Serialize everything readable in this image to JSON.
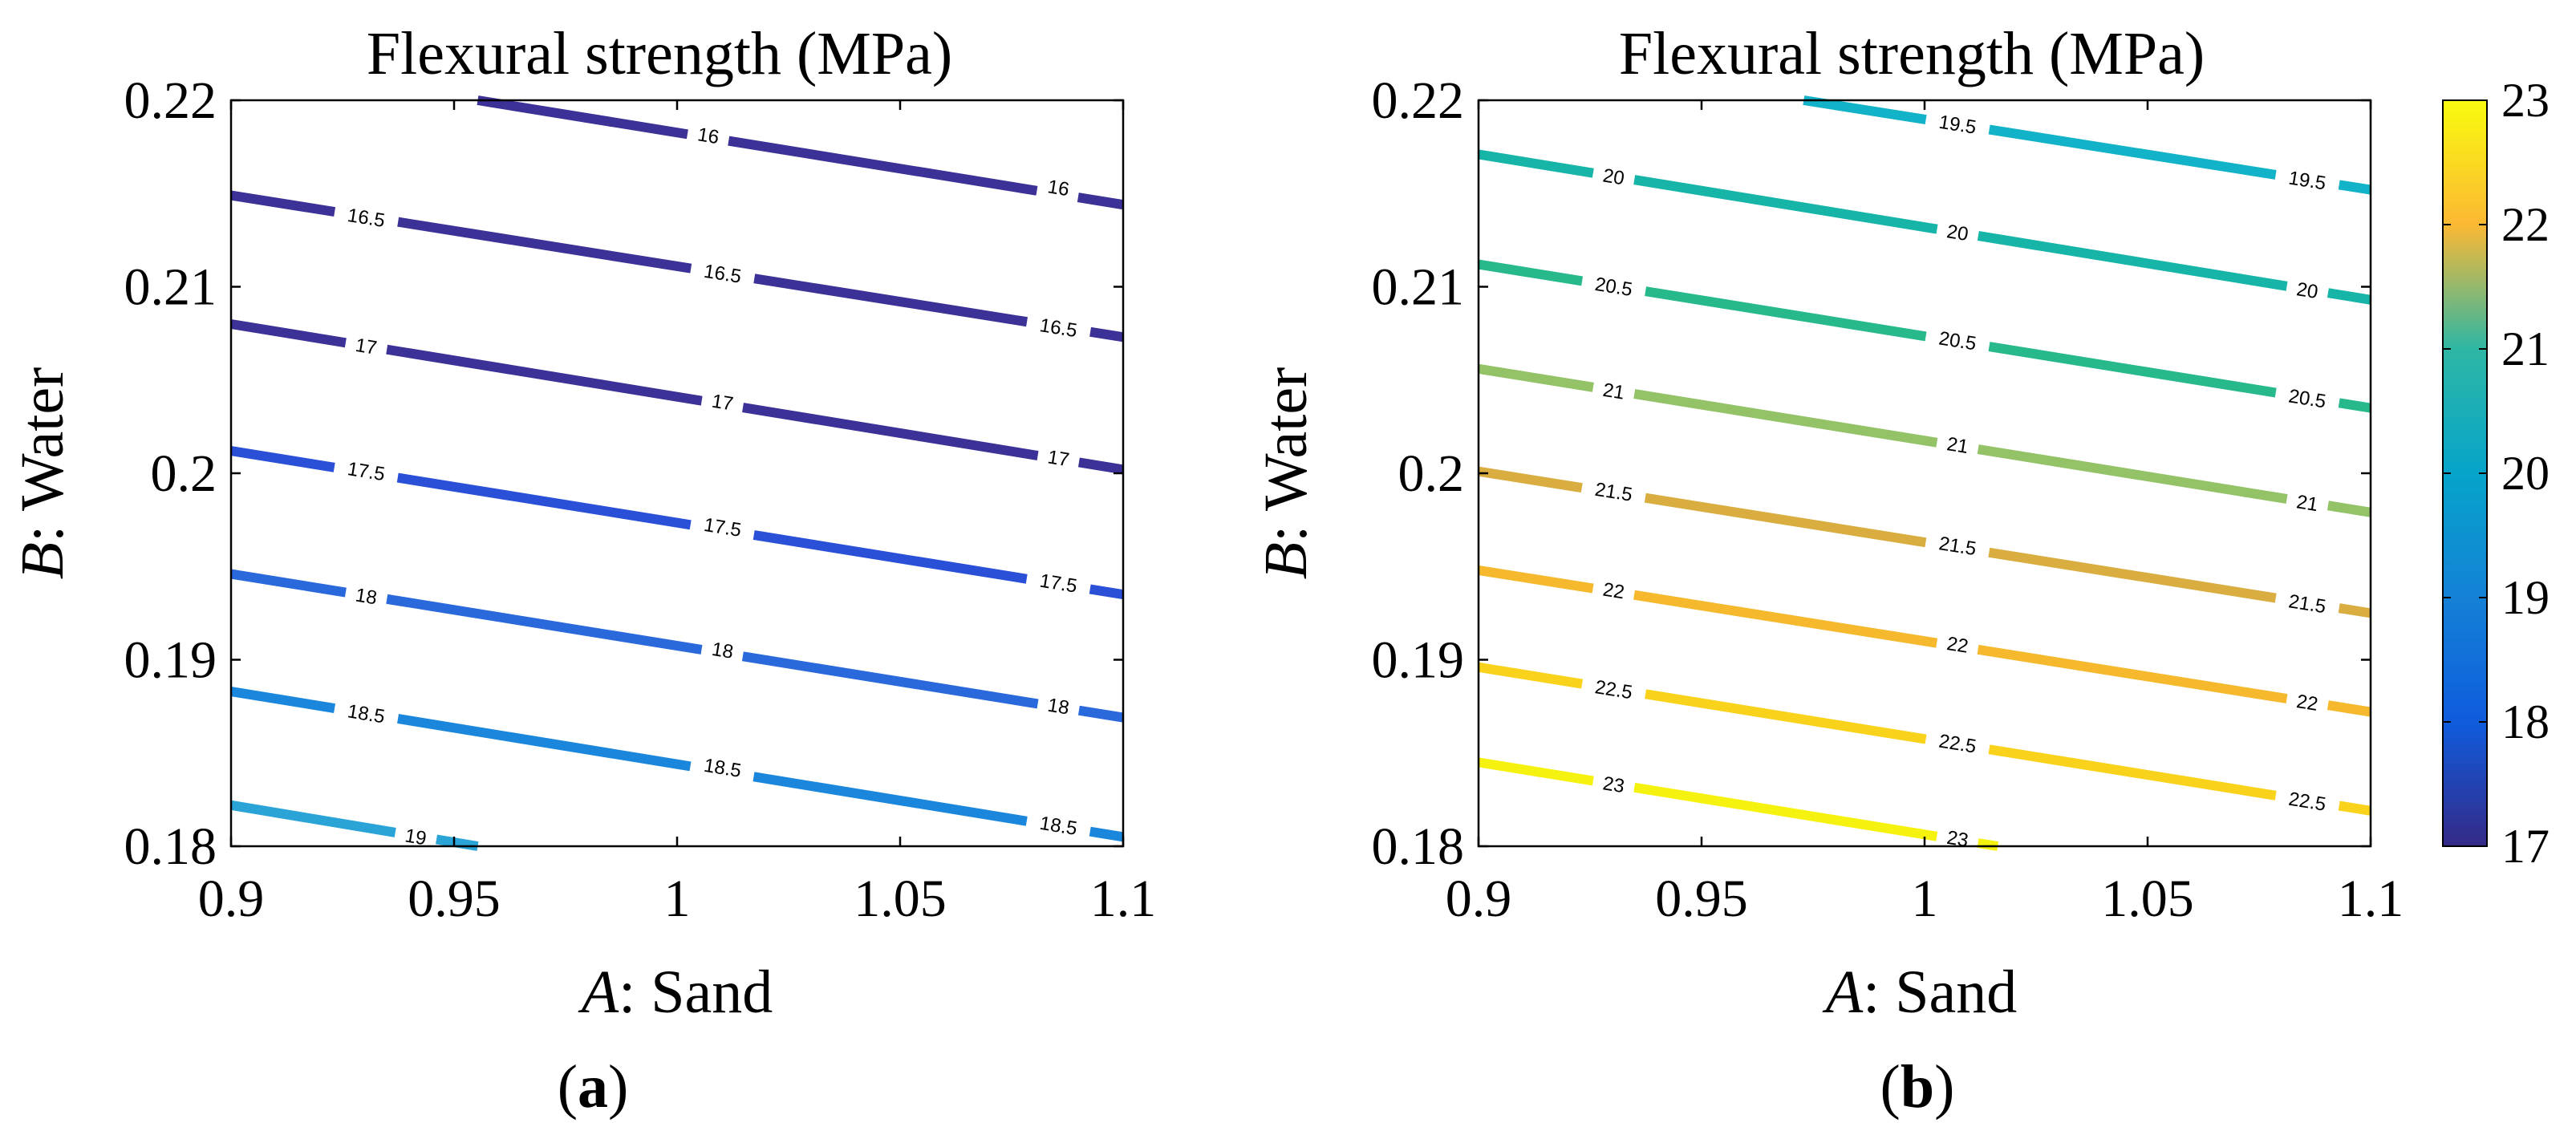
{
  "figure": {
    "panel_a": {
      "caption": "(a)",
      "caption_letter": "a"
    },
    "panel_b": {
      "caption": "(b)",
      "caption_letter": "b"
    },
    "xlabel_var": "A",
    "xlabel_text": ": Sand",
    "ylabel_var": "B",
    "ylabel_text": ": Water"
  },
  "chart_data": [
    {
      "type": "line",
      "subtype": "contour",
      "panel": "a",
      "title": "Flexural strength (MPa)",
      "xlabel": "A: Sand",
      "ylabel": "B: Water",
      "xlim": [
        0.9,
        1.1
      ],
      "ylim": [
        0.18,
        0.22
      ],
      "xticks": [
        "0.9",
        "0.95",
        "1",
        "1.05",
        "1.1"
      ],
      "yticks": [
        "0.18",
        "0.19",
        "0.2",
        "0.21",
        "0.22"
      ],
      "grid": false,
      "contours": [
        {
          "level": "16",
          "color": "#3b3196",
          "x": [
            0.9553,
            1.1
          ],
          "y": [
            0.22,
            0.2144
          ],
          "labels": [
            [
              1.007,
              0.2181
            ],
            [
              1.0855,
              0.2153
            ]
          ]
        },
        {
          "level": "16.5",
          "color": "#3b3196",
          "x": [
            0.9,
            1.1
          ],
          "y": [
            0.2149,
            0.2073
          ],
          "labels": [
            [
              0.9303,
              0.2137
            ],
            [
              1.0102,
              0.2107
            ],
            [
              1.0855,
              0.2078
            ]
          ]
        },
        {
          "level": "17",
          "color": "#3b3196",
          "x": [
            0.9,
            1.1
          ],
          "y": [
            0.208,
            0.2002
          ],
          "labels": [
            [
              0.9303,
              0.2068
            ],
            [
              1.0102,
              0.2038
            ],
            [
              1.0855,
              0.2008
            ]
          ]
        },
        {
          "level": "17.5",
          "color": "#2a50d8",
          "x": [
            0.9,
            1.1
          ],
          "y": [
            0.2012,
            0.1935
          ],
          "labels": [
            [
              0.9303,
              0.2001
            ],
            [
              1.0102,
              0.1971
            ],
            [
              1.0855,
              0.1941
            ]
          ]
        },
        {
          "level": "18",
          "color": "#2a69dc",
          "x": [
            0.9,
            1.1
          ],
          "y": [
            0.1946,
            0.1869
          ],
          "labels": [
            [
              0.9303,
              0.1934
            ],
            [
              1.0102,
              0.1905
            ],
            [
              1.0855,
              0.1875
            ]
          ]
        },
        {
          "level": "18.5",
          "color": "#1a87dc",
          "x": [
            0.9,
            1.1
          ],
          "y": [
            0.1883,
            0.1805
          ],
          "labels": [
            [
              0.9303,
              0.1871
            ],
            [
              1.0102,
              0.1842
            ],
            [
              1.0855,
              0.1811
            ]
          ]
        },
        {
          "level": "19",
          "color": "#2aa3d6",
          "x": [
            0.9,
            0.9553
          ],
          "y": [
            0.1822,
            0.18
          ],
          "labels": [
            [
              0.9414,
              0.1805
            ]
          ]
        }
      ]
    },
    {
      "type": "line",
      "subtype": "contour",
      "panel": "b",
      "title": "Flexural strength (MPa)",
      "xlabel": "A: Sand",
      "ylabel": "B: Water",
      "xlim": [
        0.9,
        1.1
      ],
      "ylim": [
        0.18,
        0.22
      ],
      "xticks": [
        "0.9",
        "0.95",
        "1",
        "1.05",
        "1.1"
      ],
      "yticks": [
        "0.18",
        "0.19",
        "0.2",
        "0.21",
        "0.22"
      ],
      "grid": false,
      "colorbar": {
        "min": 17,
        "max": 23,
        "ticks": [
          "17",
          "18",
          "19",
          "20",
          "21",
          "22",
          "23"
        ]
      },
      "contours": [
        {
          "level": "19.5",
          "color": "#12b2c8",
          "x": [
            0.9729,
            1.1
          ],
          "y": [
            0.22,
            0.2152
          ],
          "labels": [
            [
              1.0074,
              0.2187
            ],
            [
              1.0858,
              0.2157
            ]
          ]
        },
        {
          "level": "20",
          "color": "#17b5a8",
          "x": [
            0.9,
            1.1
          ],
          "y": [
            0.2171,
            0.2093
          ],
          "labels": [
            [
              0.9303,
              0.2159
            ],
            [
              1.0074,
              0.2129
            ],
            [
              1.0858,
              0.2098
            ]
          ]
        },
        {
          "level": "20.5",
          "color": "#27b98c",
          "x": [
            0.9,
            1.1
          ],
          "y": [
            0.2112,
            0.2035
          ],
          "labels": [
            [
              0.9303,
              0.21
            ],
            [
              1.0074,
              0.2071
            ],
            [
              1.0858,
              0.204
            ]
          ]
        },
        {
          "level": "21",
          "color": "#93c267",
          "x": [
            0.9,
            1.1
          ],
          "y": [
            0.2056,
            0.1979
          ],
          "labels": [
            [
              0.9303,
              0.2044
            ],
            [
              1.0074,
              0.2015
            ],
            [
              1.0858,
              0.1984
            ]
          ]
        },
        {
          "level": "21.5",
          "color": "#d9ad40",
          "x": [
            0.9,
            1.1
          ],
          "y": [
            0.2001,
            0.1925
          ],
          "labels": [
            [
              0.9303,
              0.199
            ],
            [
              1.0074,
              0.1961
            ],
            [
              1.0858,
              0.193
            ]
          ]
        },
        {
          "level": "22",
          "color": "#f6b92e",
          "x": [
            0.9,
            1.1
          ],
          "y": [
            0.1948,
            0.1872
          ],
          "labels": [
            [
              0.9303,
              0.1937
            ],
            [
              1.0074,
              0.1908
            ],
            [
              1.0858,
              0.1877
            ]
          ]
        },
        {
          "level": "22.5",
          "color": "#f9d21c",
          "x": [
            0.9,
            1.1
          ],
          "y": [
            0.1896,
            0.1819
          ],
          "labels": [
            [
              0.9303,
              0.1884
            ],
            [
              1.0074,
              0.1855
            ],
            [
              1.0858,
              0.1824
            ]
          ]
        },
        {
          "level": "23",
          "color": "#f6f20f",
          "x": [
            0.9,
            1.0164
          ],
          "y": [
            0.1845,
            0.18
          ],
          "labels": [
            [
              0.9303,
              0.1833
            ],
            [
              1.0074,
              0.1804
            ]
          ]
        }
      ]
    }
  ]
}
